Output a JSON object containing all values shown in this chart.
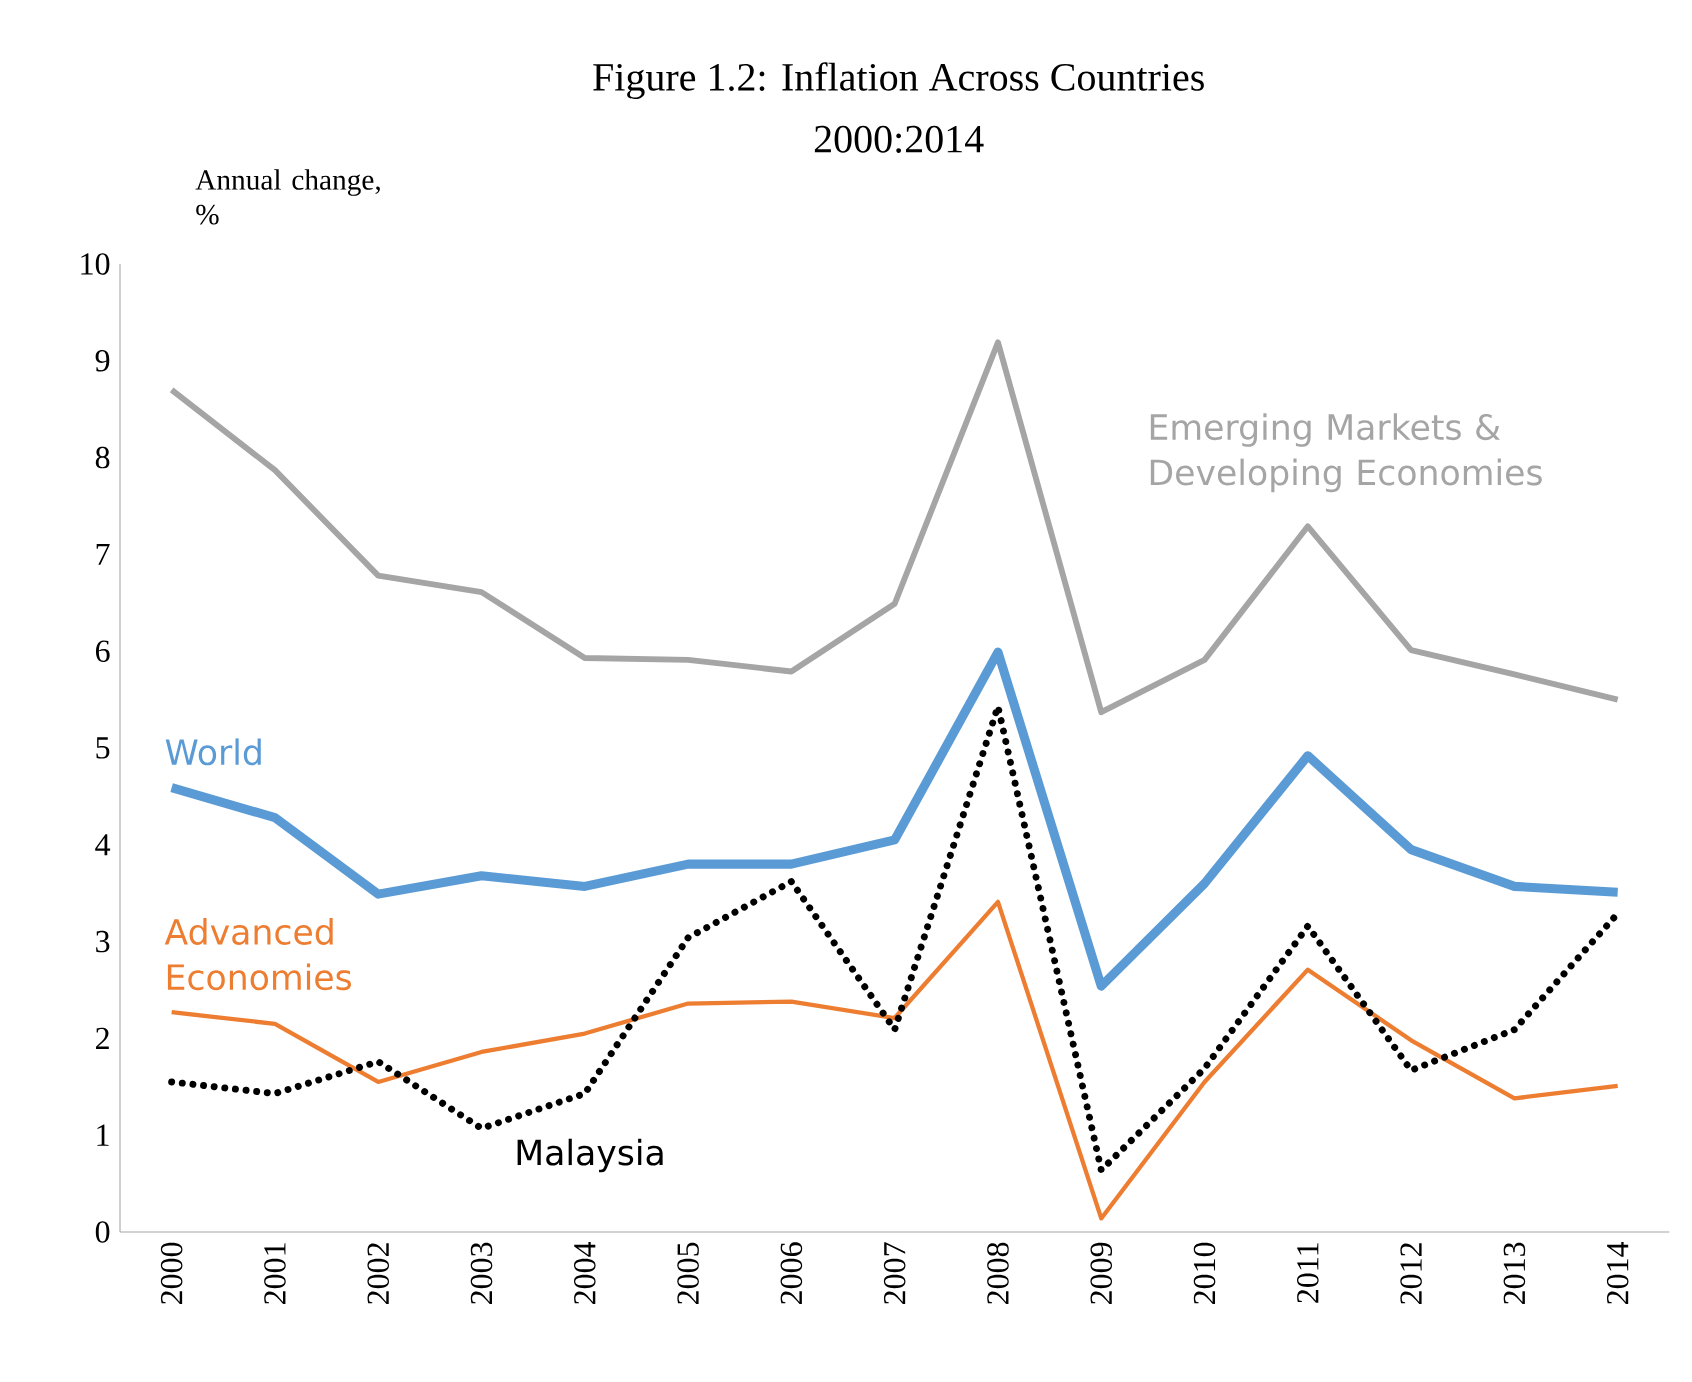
{
  "chart_data": {
    "type": "line",
    "title": "Figure 1.2:   Inflation Across Countries",
    "subtitle": "2000:2014",
    "ylabel": "Annual change, %",
    "categories": [
      "2000",
      "2001",
      "2002",
      "2003",
      "2004",
      "2005",
      "2006",
      "2007",
      "2008",
      "2009",
      "2010",
      "2011",
      "2012",
      "2013",
      "2014"
    ],
    "ylim": [
      0,
      10
    ],
    "yticks": [
      0,
      1,
      2,
      3,
      4,
      5,
      6,
      7,
      8,
      9,
      10
    ],
    "grid": false,
    "legend": false,
    "marker": "none",
    "series": [
      {
        "name": "Emerging Markets & Developing Economies",
        "color": "#a5a5a5",
        "line_style": "solid",
        "values": [
          8.7,
          7.87,
          6.78,
          6.61,
          5.93,
          5.91,
          5.79,
          6.49,
          9.19,
          5.37,
          5.91,
          7.29,
          6.01,
          5.76,
          5.5
        ]
      },
      {
        "name": "World",
        "color": "#5b9bd5",
        "line_style": "solid",
        "values": [
          4.59,
          4.28,
          3.49,
          3.68,
          3.57,
          3.8,
          3.8,
          4.05,
          5.99,
          2.54,
          3.6,
          4.92,
          3.95,
          3.57,
          3.51
        ]
      },
      {
        "name": "Advanced Economies",
        "color": "#ed7d31",
        "line_style": "solid",
        "values": [
          2.27,
          2.15,
          1.55,
          1.86,
          2.05,
          2.36,
          2.38,
          2.21,
          3.41,
          0.14,
          1.55,
          2.71,
          1.98,
          1.38,
          1.51
        ]
      },
      {
        "name": "Malaysia",
        "color": "#000000",
        "line_style": "dotted",
        "values": [
          1.55,
          1.43,
          1.76,
          1.07,
          1.43,
          3.04,
          3.62,
          2.09,
          5.43,
          0.64,
          1.69,
          3.16,
          1.67,
          2.09,
          3.29
        ]
      }
    ]
  }
}
